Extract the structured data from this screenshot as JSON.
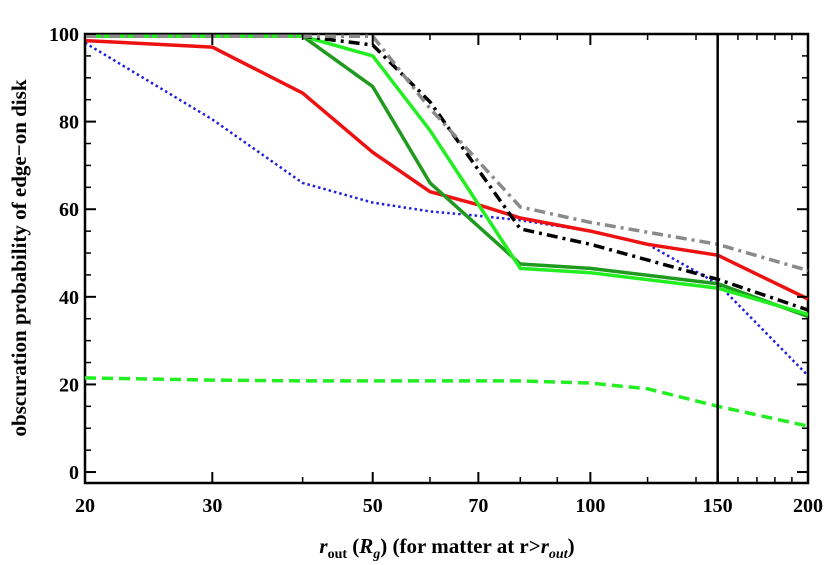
{
  "chart_data": {
    "type": "line",
    "title": "",
    "xlabel": {
      "r": "r",
      "out_sub": "out",
      "paren_open": " (",
      "R": "R",
      "g_sub": "g",
      "rest": ") (for matter at r>",
      "r2": "r",
      "out_sub2": "out",
      "close": ")"
    },
    "ylabel": "obscuration probability of edge−on disk",
    "xscale": "log",
    "xlim": [
      20,
      200
    ],
    "ylim": [
      -2.5,
      100
    ],
    "x_ticks": [
      20,
      30,
      50,
      70,
      100,
      150,
      200
    ],
    "x_tick_labels": [
      "20",
      "30",
      "50",
      "70",
      "100",
      "150",
      "200"
    ],
    "y_ticks": [
      0,
      20,
      40,
      60,
      80,
      100
    ],
    "y_tick_labels": [
      "0",
      "20",
      "40",
      "60",
      "80",
      "100"
    ],
    "vertical_line_x": 150,
    "series": [
      {
        "name": "light green dashed",
        "color": "#22ee22",
        "style": "dashed",
        "x": [
          20,
          30,
          40,
          50,
          60,
          70,
          80,
          100,
          120,
          150,
          200
        ],
        "y": [
          21.5,
          21,
          20.8,
          20.8,
          20.8,
          20.8,
          20.8,
          20.3,
          19,
          15,
          10.5
        ]
      },
      {
        "name": "blue dotted",
        "color": "#1f1fdd",
        "style": "dotted",
        "x": [
          20,
          30,
          40,
          50,
          60,
          70,
          80,
          100,
          120,
          150,
          200
        ],
        "y": [
          98,
          80.5,
          66,
          61.5,
          59.5,
          58.5,
          57.5,
          55,
          52,
          43,
          22
        ]
      },
      {
        "name": "red solid",
        "color": "#ee1111",
        "style": "solid",
        "x": [
          20,
          30,
          40,
          50,
          60,
          70,
          80,
          100,
          120,
          150,
          200
        ],
        "y": [
          98.5,
          97,
          86.5,
          73,
          64,
          61,
          58,
          55,
          52,
          49.5,
          39.5
        ]
      },
      {
        "name": "dark green solid",
        "color": "#1f9a1f",
        "style": "solid",
        "x": [
          20,
          30,
          40,
          50,
          60,
          80,
          100,
          150,
          200
        ],
        "y": [
          99.5,
          99.5,
          99.5,
          88,
          66,
          47.5,
          46.5,
          43,
          35.5
        ]
      },
      {
        "name": "bright green solid",
        "color": "#22ee22",
        "style": "solid",
        "x": [
          20,
          30,
          40,
          50,
          60,
          80,
          100,
          150,
          200
        ],
        "y": [
          99.5,
          99.5,
          99.5,
          95,
          78,
          46.5,
          45.5,
          42,
          36
        ]
      },
      {
        "name": "black dash-dot",
        "color": "#000000",
        "style": "dashdot",
        "x": [
          20,
          30,
          40,
          50,
          60,
          80,
          100,
          150,
          200
        ],
        "y": [
          99.5,
          99.5,
          99.5,
          97.5,
          84.5,
          55.5,
          52,
          44,
          37
        ]
      },
      {
        "name": "gray dash-dot",
        "color": "#8a8a8a",
        "style": "dashdot",
        "x": [
          20,
          30,
          40,
          50,
          60,
          80,
          100,
          150,
          200
        ],
        "y": [
          99.5,
          99.5,
          99.5,
          99.5,
          83,
          60.5,
          57,
          52,
          46
        ]
      }
    ]
  }
}
